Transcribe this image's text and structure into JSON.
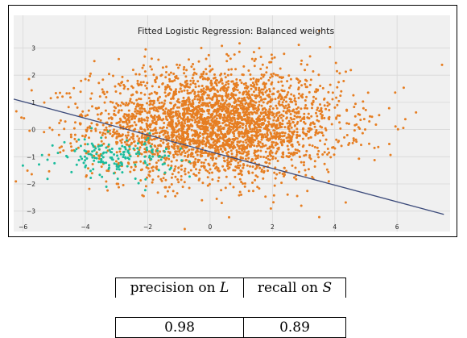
{
  "chart_data": {
    "type": "scatter",
    "title": "Fitted Logistic Regression: Balanced weights",
    "xlim": [
      -6.3,
      7.7
    ],
    "ylim": [
      -3.75,
      4.2
    ],
    "x_ticks": [
      "−6",
      "−4",
      "−2",
      "0",
      "2",
      "4",
      "6"
    ],
    "x_tick_values": [
      -6,
      -4,
      -2,
      0,
      2,
      4,
      6
    ],
    "y_ticks": [
      "−3",
      "−2",
      "−1",
      "0",
      "1",
      "2",
      "3"
    ],
    "y_tick_values": [
      -3,
      -2,
      -1,
      0,
      1,
      2,
      3
    ],
    "grid": true,
    "series": [
      {
        "class": "L",
        "color": "#e67e22",
        "center": [
          0.2,
          0.2
        ],
        "spread": [
          2.0,
          1.0
        ],
        "count": 3200
      },
      {
        "class": "S",
        "color": "#1abc9c",
        "center": [
          -3.0,
          -1.0
        ],
        "spread": [
          0.9,
          0.35
        ],
        "count": 170
      }
    ],
    "decision_boundary": {
      "color": "#3b4a7a",
      "from": [
        -6.3,
        1.12
      ],
      "to": [
        7.5,
        -3.12
      ]
    }
  },
  "metrics_table": {
    "header": {
      "precision_text": "precision on ",
      "precision_var": "L",
      "recall_text": "recall on ",
      "recall_var": "S"
    },
    "values": {
      "precision": "0.98",
      "recall": "0.89"
    }
  }
}
